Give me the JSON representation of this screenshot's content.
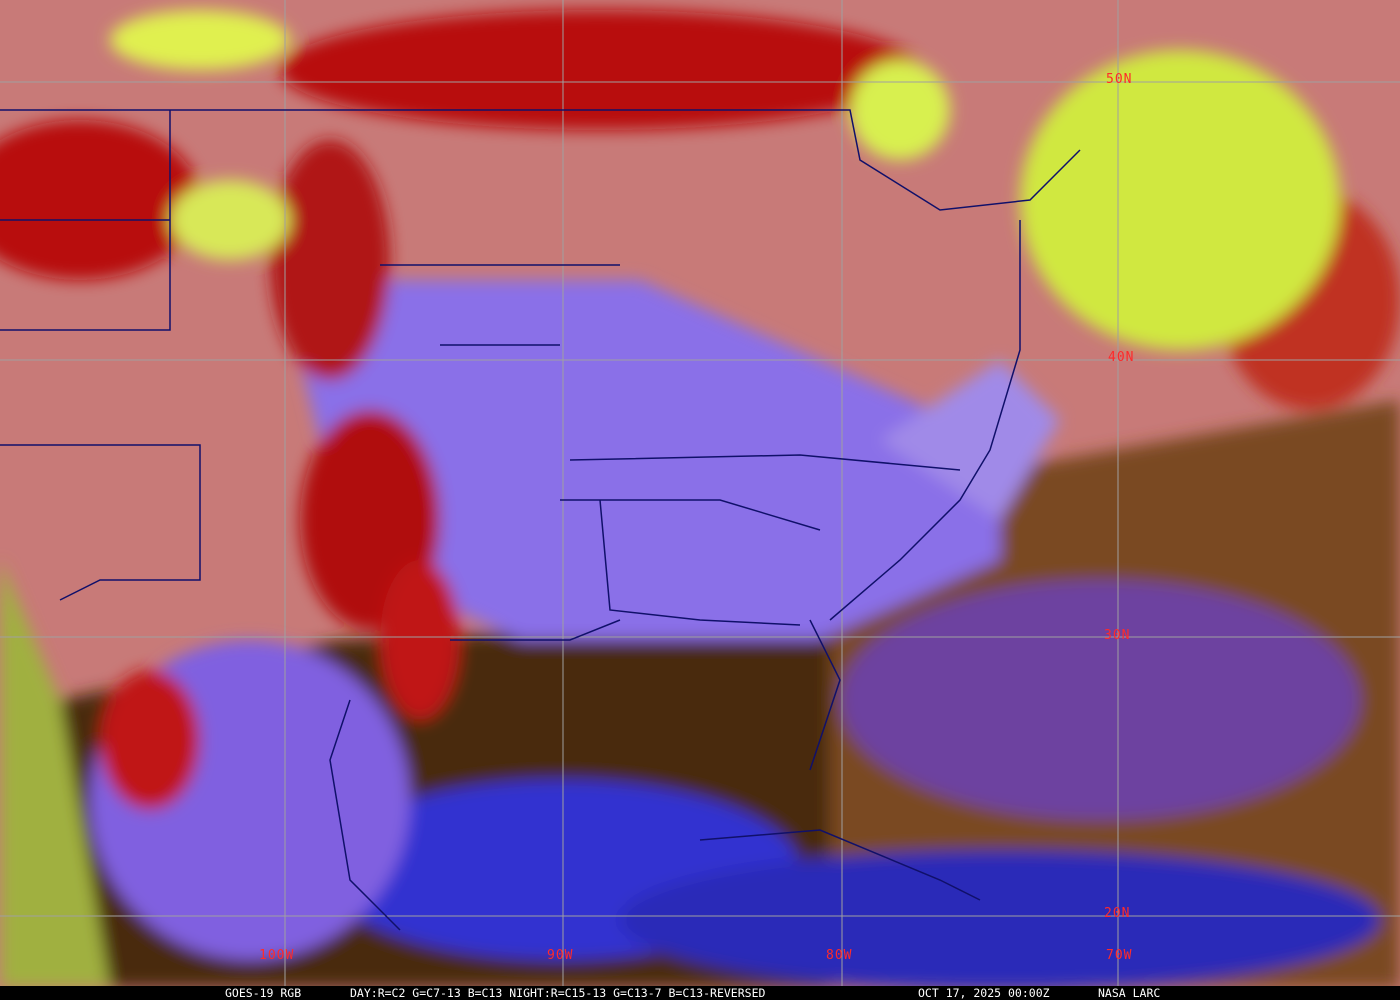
{
  "caption": {
    "product": "GOES-19 RGB",
    "recipe": "DAY:R=C2 G=C7-13 B=C13 NIGHT:R=C15-13 G=C13-7 B=C13-REVERSED",
    "timestamp": "OCT 17, 2025 00:00Z",
    "source": "NASA LARC"
  },
  "grid": {
    "latitudes": [
      "50N",
      "40N",
      "30N",
      "20N"
    ],
    "longitudes": [
      "100W",
      "90W",
      "80W",
      "70W"
    ],
    "label_color": "#ff2a2a",
    "line_color": "#a0a0a0",
    "boundary_color": "#10106a"
  },
  "palette": {
    "land_clear": "#c87a78",
    "ocean_night": "#4a2a08",
    "low_cloud": "#8a6cf0",
    "high_cloud": "#c01818",
    "mid_cloud": "#d8f040"
  }
}
